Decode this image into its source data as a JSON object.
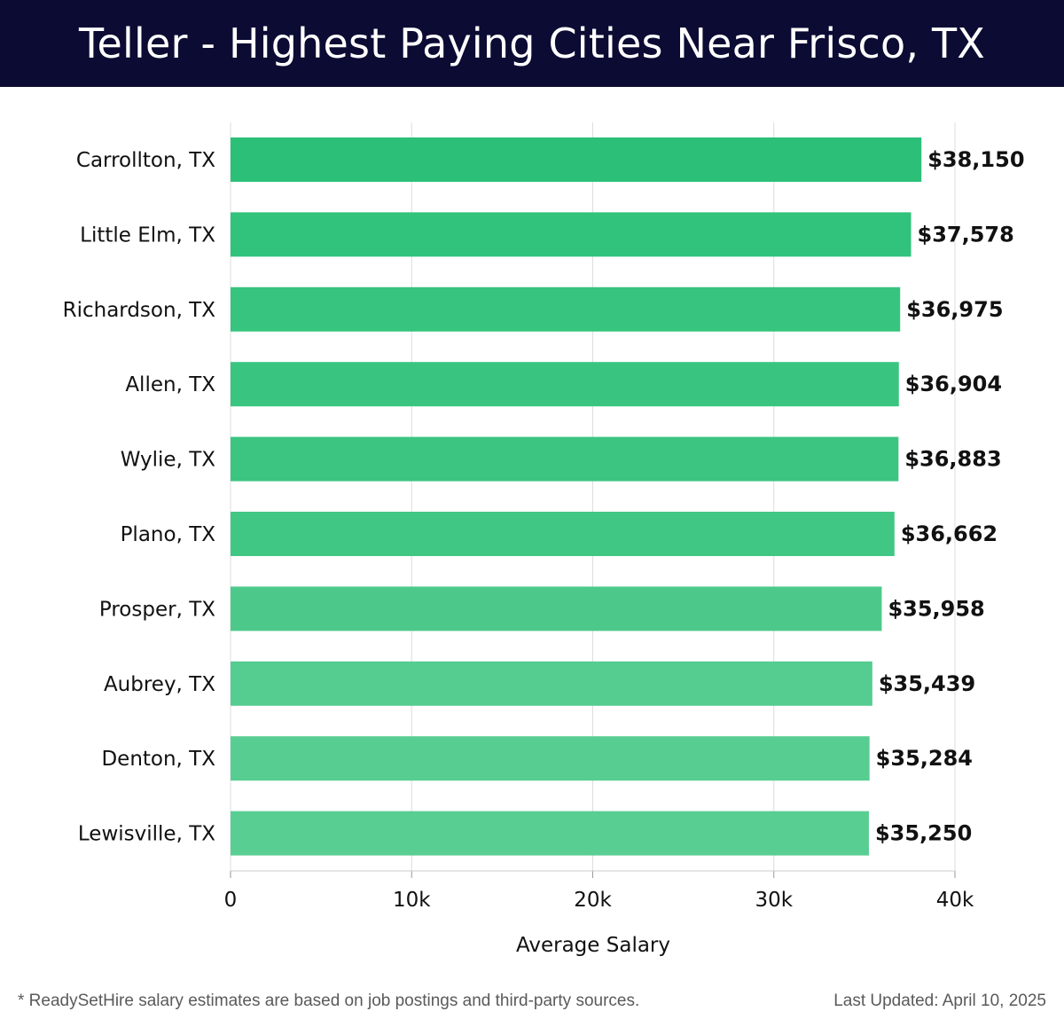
{
  "chart_data": {
    "type": "bar",
    "orientation": "horizontal",
    "title": "Teller - Highest Paying Cities Near Frisco, TX",
    "xlabel": "Average Salary",
    "ylabel": "",
    "xlim": [
      0,
      40000
    ],
    "xticks": [
      0,
      10000,
      20000,
      30000,
      40000
    ],
    "xtick_labels": [
      "0",
      "10k",
      "20k",
      "30k",
      "40k"
    ],
    "grid": true,
    "categories": [
      "Carrollton, TX",
      "Little Elm, TX",
      "Richardson, TX",
      "Allen, TX",
      "Wylie, TX",
      "Plano, TX",
      "Prosper, TX",
      "Aubrey, TX",
      "Denton, TX",
      "Lewisville, TX"
    ],
    "values": [
      38150,
      37578,
      36975,
      36904,
      36883,
      36662,
      35958,
      35439,
      35284,
      35250
    ],
    "data_labels": [
      "$38,150",
      "$37,578",
      "$36,975",
      "$36,904",
      "$36,883",
      "$36,662",
      "$35,958",
      "$35,439",
      "$35,284",
      "$35,250"
    ],
    "bar_colors": [
      "#2bbf78",
      "#31c27c",
      "#37c47f",
      "#39c580",
      "#3bc581",
      "#41c784",
      "#4cc98a",
      "#55cc90",
      "#58cd92",
      "#59ce93"
    ]
  },
  "footer": {
    "note": "* ReadySetHire salary estimates are based on job postings and third-party sources.",
    "updated": "Last Updated: April 10, 2025"
  },
  "colors": {
    "header_bg": "#0b0b33",
    "grid": "#dddddd",
    "text": "#111111"
  }
}
